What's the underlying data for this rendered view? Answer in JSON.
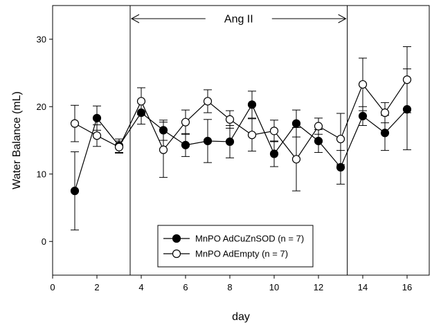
{
  "chart_data": {
    "type": "line",
    "xlabel": "day",
    "ylabel": "Water Balance (mL)",
    "xlim": [
      0,
      17
    ],
    "ylim": [
      -5,
      35
    ],
    "xticks": [
      0,
      2,
      4,
      6,
      8,
      10,
      12,
      14,
      16
    ],
    "yticks": [
      0,
      10,
      20,
      30
    ],
    "x": [
      1,
      2,
      3,
      4,
      5,
      6,
      7,
      8,
      9,
      10,
      11,
      12,
      13,
      14,
      15,
      16
    ],
    "series": [
      {
        "name": "MnPO AdCuZnSOD (n = 7)",
        "marker": "filled-circle",
        "color": "#000000",
        "values": [
          7.5,
          18.3,
          14.2,
          19.1,
          16.5,
          14.3,
          14.9,
          14.8,
          20.3,
          13.0,
          17.5,
          14.9,
          11.0,
          18.6,
          16.1,
          19.6
        ],
        "error": [
          5.8,
          1.8,
          1.0,
          1.7,
          1.5,
          1.7,
          3.2,
          2.4,
          2.0,
          1.9,
          2.0,
          1.7,
          2.5,
          1.4,
          2.6,
          6.0
        ]
      },
      {
        "name": "MnPO AdEmpty (n = 7)",
        "marker": "open-circle",
        "color": "#000000",
        "values": [
          17.5,
          15.7,
          14.0,
          20.8,
          13.6,
          17.7,
          20.8,
          18.1,
          15.8,
          16.4,
          12.2,
          17.1,
          15.2,
          23.3,
          19.1,
          24.0
        ],
        "error": [
          2.7,
          1.6,
          0.9,
          2.0,
          4.1,
          1.8,
          1.7,
          1.3,
          2.4,
          1.6,
          4.7,
          1.2,
          3.8,
          3.9,
          1.5,
          4.9
        ]
      }
    ],
    "annotations": [
      {
        "text": "Ang II",
        "x_start": 3.5,
        "x_end": 13.3
      }
    ],
    "legend_position": "bottom-center",
    "grid": false
  }
}
